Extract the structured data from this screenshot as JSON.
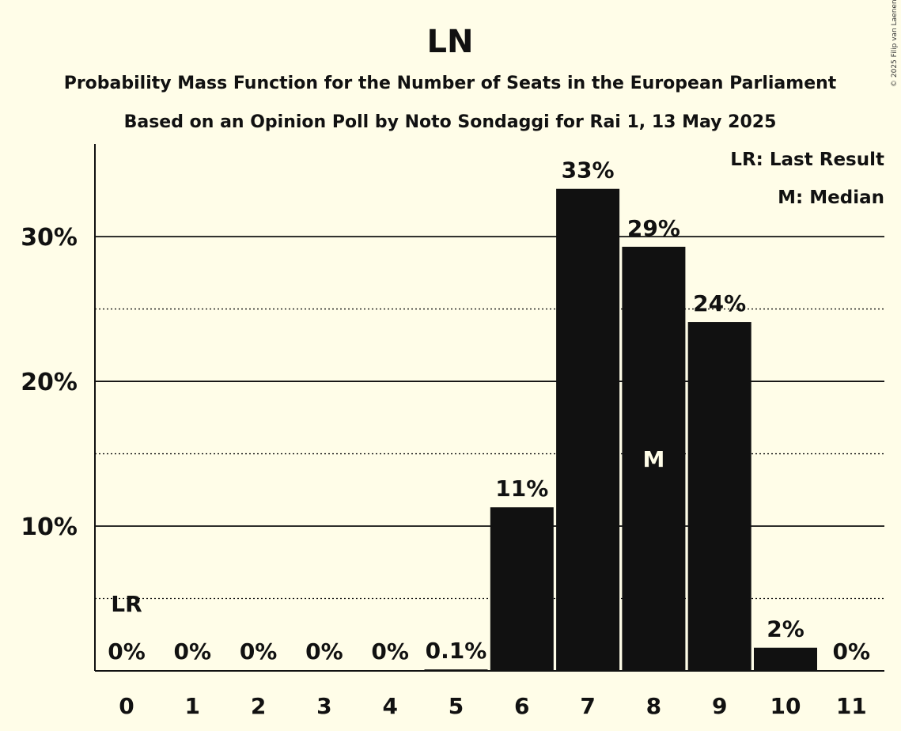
{
  "chart_data": {
    "type": "bar",
    "title": "LN",
    "subtitle": "Probability Mass Function for the Number of Seats in the European Parliament",
    "subtitle2": "Based on an Opinion Poll by Noto Sondaggi for Rai 1, 13 May 2025",
    "categories": [
      "0",
      "1",
      "2",
      "3",
      "4",
      "5",
      "6",
      "7",
      "8",
      "9",
      "10",
      "11"
    ],
    "values": [
      0,
      0,
      0,
      0,
      0,
      0.1,
      11.3,
      33.3,
      29.3,
      24.1,
      1.6,
      0
    ],
    "value_labels": [
      "0%",
      "0%",
      "0%",
      "0%",
      "0%",
      "0.1%",
      "11%",
      "33%",
      "29%",
      "24%",
      "2%",
      "0%"
    ],
    "ylim": [
      0,
      36.4
    ],
    "yticks": [
      10,
      20,
      30
    ],
    "ytick_labels": [
      "10%",
      "20%",
      "30%"
    ],
    "minor_gridlines": [
      5,
      15,
      25
    ],
    "last_result_index": 0,
    "median_index": 8,
    "legend": {
      "last_result": "LR: Last Result",
      "median": "M: Median",
      "placement": "top-right"
    },
    "markers": {
      "last_result": "LR",
      "median": "M"
    },
    "bar_color": "#111111",
    "background_color": "#fffde8",
    "copyright": "© 2025 Filip van Laenen"
  }
}
